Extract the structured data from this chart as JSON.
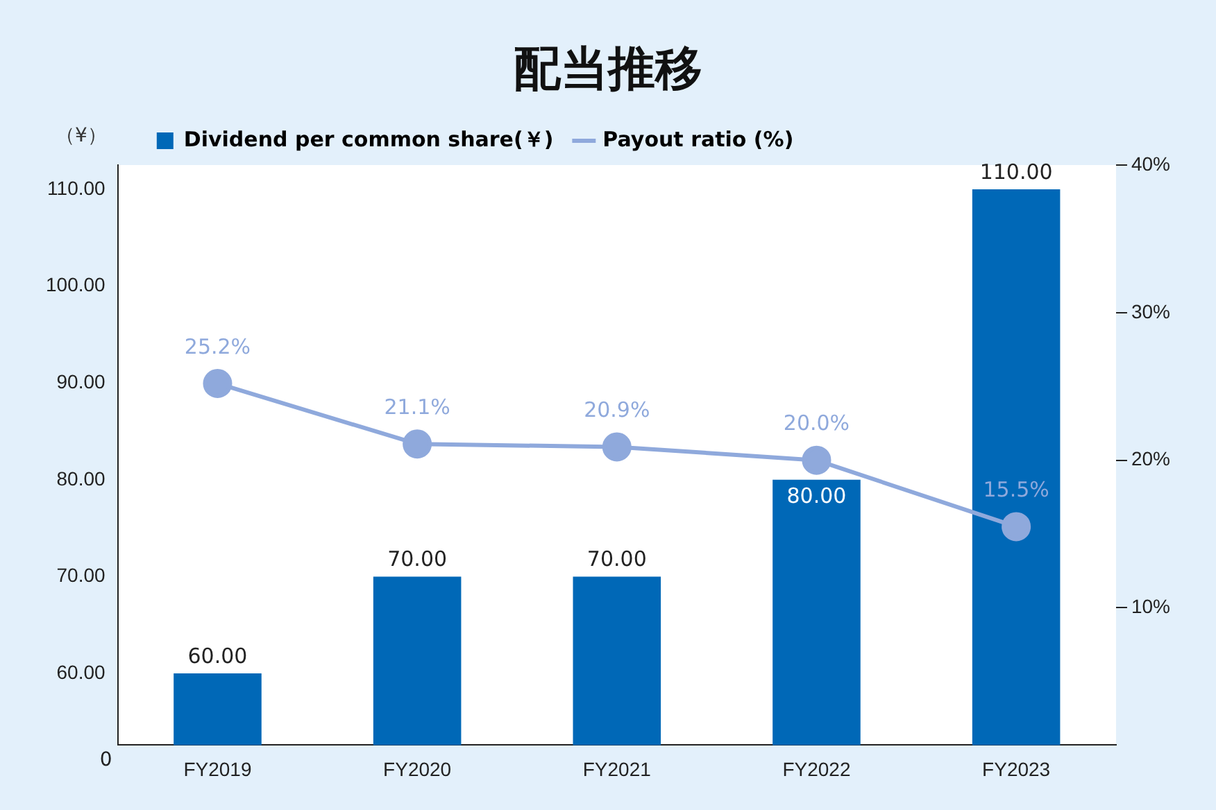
{
  "chart_data": {
    "type": "bar",
    "title": "配当推移",
    "ylabel": "（¥）",
    "categories": [
      "FY2019",
      "FY2020",
      "FY2021",
      "FY2022",
      "FY2023"
    ],
    "series": [
      {
        "name": "Dividend per common share(￥)",
        "color": "#0068b7",
        "values": [
          60,
          70,
          70,
          80,
          110
        ],
        "value_labels": [
          "60.00",
          "70.00",
          "70.00",
          "80.00",
          "110.00"
        ]
      },
      {
        "name": "Payout ratio (%)",
        "type": "line",
        "axis": "y2",
        "color": "#8fa9dc",
        "values": [
          25.2,
          21.1,
          20.9,
          20.0,
          15.5
        ],
        "value_labels": [
          "25.2%",
          "21.1%",
          "20.9%",
          "20.0%",
          "15.5%"
        ]
      }
    ],
    "annotations": [
      "0"
    ],
    "ylim": [
      52.6,
      112.5
    ],
    "yticks": [
      {
        "value": 60,
        "label": "60.00"
      },
      {
        "value": 70,
        "label": "70.00"
      },
      {
        "value": 80,
        "label": "80.00"
      },
      {
        "value": 90,
        "label": "90.00"
      },
      {
        "value": 100,
        "label": "100.00"
      },
      {
        "value": 110,
        "label": "110.00"
      }
    ],
    "y2lim": [
      0.7,
      40
    ],
    "y2ticks": [
      {
        "value": 10,
        "label": "10%"
      },
      {
        "value": 20,
        "label": "20%"
      },
      {
        "value": 30,
        "label": "30%"
      },
      {
        "value": 40,
        "label": "40%"
      }
    ],
    "legend": "top left",
    "marker": "circle",
    "line_style": "solid",
    "grid": false
  }
}
